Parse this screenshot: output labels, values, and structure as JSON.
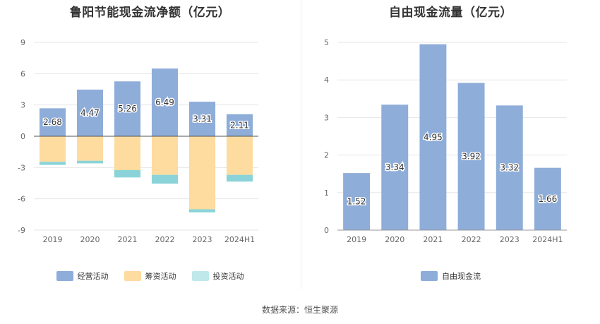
{
  "source": "数据来源：恒生聚源",
  "chart_data": [
    {
      "type": "bar",
      "stacked": true,
      "title": "鲁阳节能现金流净额（亿元）",
      "categories": [
        "2019",
        "2020",
        "2021",
        "2022",
        "2023",
        "2024H1"
      ],
      "ylim": [
        -9,
        9
      ],
      "yticks": [
        -9,
        -6,
        -3,
        0,
        3,
        6,
        9
      ],
      "grid": true,
      "legend": "bottom",
      "series": [
        {
          "name": "经营活动",
          "color": "#8eadd9",
          "values": [
            2.68,
            4.47,
            5.26,
            6.49,
            3.31,
            2.11
          ],
          "labeled": true
        },
        {
          "name": "筹资活动",
          "color": "#fedb9f",
          "values": [
            -2.45,
            -2.35,
            -3.25,
            -3.7,
            -7.0,
            -3.7
          ],
          "labeled": false
        },
        {
          "name": "投资活动",
          "color": "#8ad4d9",
          "values": [
            -0.3,
            -0.25,
            -0.7,
            -0.85,
            -0.3,
            -0.65
          ],
          "labeled": false
        }
      ]
    },
    {
      "type": "bar",
      "title": "自由现金流量（亿元）",
      "categories": [
        "2019",
        "2020",
        "2021",
        "2022",
        "2023",
        "2024H1"
      ],
      "ylim": [
        0,
        5
      ],
      "yticks": [
        0,
        1,
        2,
        3,
        4,
        5
      ],
      "grid": true,
      "legend": "bottom",
      "series": [
        {
          "name": "自由现金流",
          "color": "#8eadd9",
          "values": [
            1.52,
            3.34,
            4.95,
            3.92,
            3.32,
            1.66
          ],
          "labeled": true
        }
      ]
    }
  ]
}
